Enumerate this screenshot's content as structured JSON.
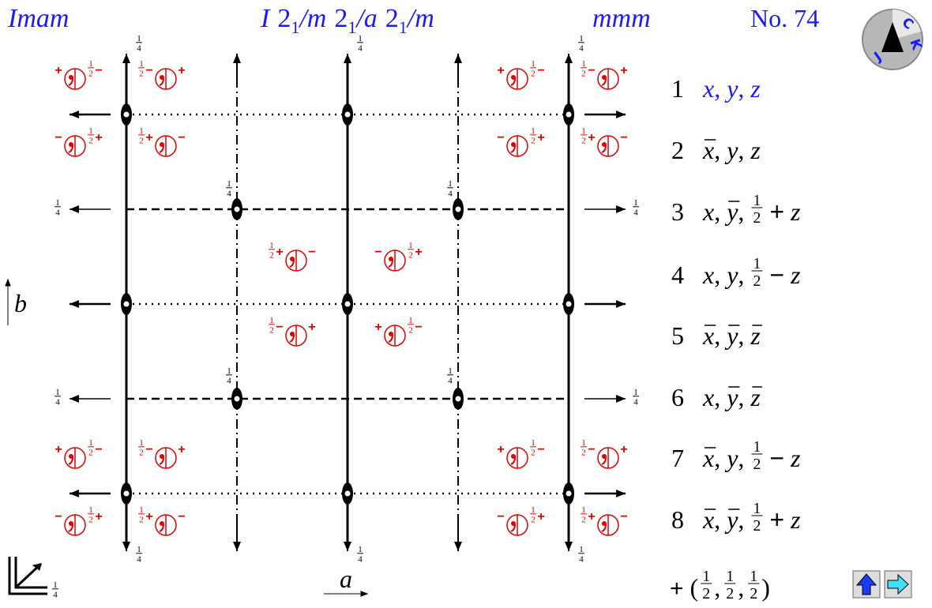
{
  "header": {
    "symbol": "Imam",
    "full_symbol": {
      "lattice": "I",
      "axes": [
        {
          "screw": "2",
          "sub": "1",
          "plane": "/m"
        },
        {
          "screw": "2",
          "sub": "1",
          "plane": "/a"
        },
        {
          "screw": "2",
          "sub": "1",
          "plane": "/m"
        }
      ]
    },
    "point_group": "mmm",
    "number": "No. 74"
  },
  "logo": {
    "letters": [
      "J",
      "K",
      "C"
    ]
  },
  "axes": {
    "a": "a",
    "b": "b"
  },
  "quarter": {
    "num": "1",
    "den": "4"
  },
  "half": {
    "num": "1",
    "den": "2"
  },
  "signs": {
    "plus": "+",
    "minus": "−"
  },
  "positions": {
    "separator": ",",
    "rows": [
      {
        "number": "1",
        "color": "#1a1aff",
        "coords": [
          {
            "sym": "x",
            "bar": false
          },
          {
            "sym": "y",
            "bar": false
          },
          {
            "sym": "z",
            "bar": false
          }
        ]
      },
      {
        "number": "2",
        "coords": [
          {
            "sym": "x",
            "bar": true
          },
          {
            "sym": "y",
            "bar": false
          },
          {
            "sym": "z",
            "bar": false
          }
        ]
      },
      {
        "number": "3",
        "coords": [
          {
            "sym": "x",
            "bar": false
          },
          {
            "sym": "y",
            "bar": true
          },
          {
            "half": {
              "num": "1",
              "den": "2"
            },
            "op": "+",
            "sym": "z",
            "bar": false
          }
        ]
      },
      {
        "number": "4",
        "coords": [
          {
            "sym": "x",
            "bar": false
          },
          {
            "sym": "y",
            "bar": false
          },
          {
            "half": {
              "num": "1",
              "den": "2"
            },
            "op": "−",
            "sym": "z",
            "bar": false
          }
        ]
      },
      {
        "number": "5",
        "coords": [
          {
            "sym": "x",
            "bar": true
          },
          {
            "sym": "y",
            "bar": true
          },
          {
            "sym": "z",
            "bar": true
          }
        ]
      },
      {
        "number": "6",
        "coords": [
          {
            "sym": "x",
            "bar": false
          },
          {
            "sym": "y",
            "bar": true
          },
          {
            "sym": "z",
            "bar": true
          }
        ]
      },
      {
        "number": "7",
        "coords": [
          {
            "sym": "x",
            "bar": true
          },
          {
            "sym": "y",
            "bar": false
          },
          {
            "half": {
              "num": "1",
              "den": "2"
            },
            "op": "−",
            "sym": "z",
            "bar": false
          }
        ]
      },
      {
        "number": "8",
        "coords": [
          {
            "sym": "x",
            "bar": true
          },
          {
            "sym": "y",
            "bar": true
          },
          {
            "half": {
              "num": "1",
              "den": "2"
            },
            "op": "+",
            "sym": "z",
            "bar": false
          }
        ]
      }
    ]
  },
  "centering": {
    "sign": "+",
    "open": "(",
    "close": ")",
    "separator": ",",
    "translation": [
      {
        "num": "1",
        "den": "2"
      },
      {
        "num": "1",
        "den": "2"
      },
      {
        "num": "1",
        "den": "2"
      }
    ]
  }
}
